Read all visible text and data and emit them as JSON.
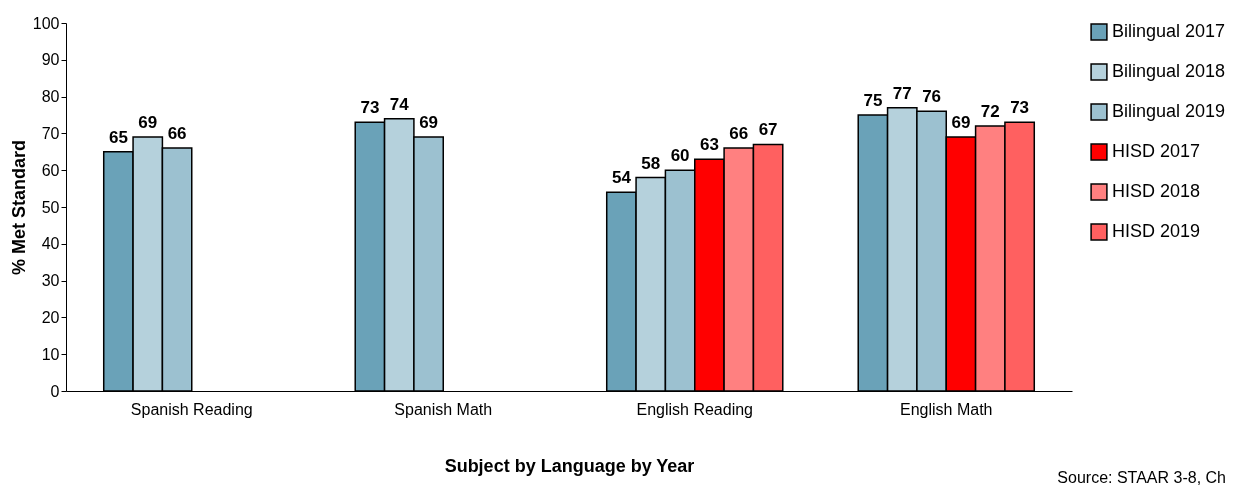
{
  "chart_data": {
    "type": "bar",
    "xlabel": "Subject by Language by Year",
    "ylabel": "% Met Standard",
    "categories": [
      "Spanish Reading",
      "Spanish Math",
      "English Reading",
      "English Math"
    ],
    "series": [
      {
        "name": "Bilingual 2017",
        "color": "#6aa2b8",
        "values": [
          65,
          73,
          54,
          75
        ]
      },
      {
        "name": "Bilingual 2018",
        "color": "#b5d1dc",
        "values": [
          69,
          74,
          58,
          77
        ]
      },
      {
        "name": "Bilingual 2019",
        "color": "#9cc1d0",
        "values": [
          66,
          69,
          60,
          76
        ]
      },
      {
        "name": "HISD 2017",
        "color": "#ff0000",
        "values": [
          null,
          null,
          63,
          69
        ]
      },
      {
        "name": "HISD 2018",
        "color": "#ff8080",
        "values": [
          null,
          null,
          66,
          72
        ]
      },
      {
        "name": "HISD 2019",
        "color": "#ff6060",
        "values": [
          null,
          null,
          67,
          73
        ]
      }
    ],
    "ylim": [
      0,
      100
    ],
    "yticks": [
      0,
      10,
      20,
      30,
      40,
      50,
      60,
      70,
      80,
      90,
      100
    ],
    "grid": false,
    "legend": "right",
    "data_labels": true,
    "annotations": [
      "Source: STAAR 3-8, Ch"
    ]
  }
}
